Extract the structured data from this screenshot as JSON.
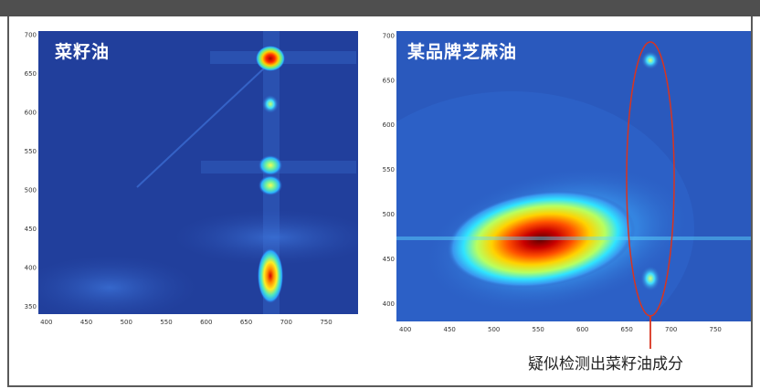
{
  "chart_data": [
    {
      "type": "heatmap",
      "title": "菜籽油",
      "x_ticks": [
        "400",
        "450",
        "500",
        "550",
        "600",
        "650",
        "700",
        "750"
      ],
      "y_ticks": [
        "350",
        "400",
        "450",
        "500",
        "550",
        "600",
        "650",
        "700"
      ],
      "xlim": [
        390,
        790
      ],
      "ylim": [
        340,
        705
      ],
      "peaks": [
        {
          "x": 675,
          "y": 670,
          "intensity": 1.0
        },
        {
          "x": 675,
          "y": 612,
          "intensity": 0.45
        },
        {
          "x": 675,
          "y": 535,
          "intensity": 0.6
        },
        {
          "x": 675,
          "y": 510,
          "intensity": 0.6
        },
        {
          "x": 675,
          "y": 395,
          "intensity": 0.9
        }
      ]
    },
    {
      "type": "heatmap",
      "title": "某品牌芝麻油",
      "x_ticks": [
        "400",
        "450",
        "500",
        "550",
        "600",
        "650",
        "700",
        "750"
      ],
      "y_ticks": [
        "400",
        "450",
        "500",
        "550",
        "600",
        "650",
        "700"
      ],
      "xlim": [
        390,
        790
      ],
      "ylim": [
        380,
        705
      ],
      "peaks": [
        {
          "x": 560,
          "y": 470,
          "intensity": 1.0
        },
        {
          "x": 675,
          "y": 670,
          "intensity": 0.5
        },
        {
          "x": 675,
          "y": 415,
          "intensity": 0.4
        }
      ]
    }
  ],
  "annotation": {
    "text": "疑似检测出菜籽油成分",
    "color": "#d9341f"
  },
  "colors": {
    "background": "#1f3f99",
    "frame": "#5a5a5a",
    "topbar": "#4f4f4f"
  }
}
